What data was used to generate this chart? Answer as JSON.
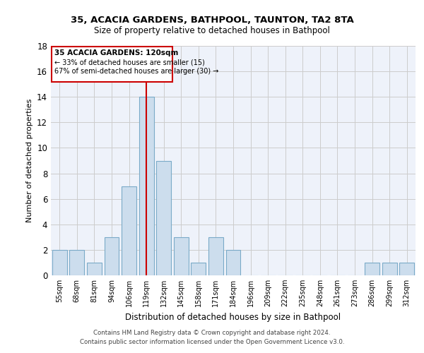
{
  "title1": "35, ACACIA GARDENS, BATHPOOL, TAUNTON, TA2 8TA",
  "title2": "Size of property relative to detached houses in Bathpool",
  "xlabel": "Distribution of detached houses by size in Bathpool",
  "ylabel": "Number of detached properties",
  "categories": [
    "55sqm",
    "68sqm",
    "81sqm",
    "94sqm",
    "106sqm",
    "119sqm",
    "132sqm",
    "145sqm",
    "158sqm",
    "171sqm",
    "184sqm",
    "196sqm",
    "209sqm",
    "222sqm",
    "235sqm",
    "248sqm",
    "261sqm",
    "273sqm",
    "286sqm",
    "299sqm",
    "312sqm"
  ],
  "values": [
    2,
    2,
    1,
    3,
    7,
    14,
    9,
    3,
    1,
    3,
    2,
    0,
    0,
    0,
    0,
    0,
    0,
    0,
    1,
    1,
    1
  ],
  "bar_color": "#ccdded",
  "bar_edge_color": "#7aaac8",
  "grid_color": "#cccccc",
  "bg_color": "#eef2fa",
  "annotation_box_color": "#ffffff",
  "annotation_border_color": "#cc0000",
  "vline_color": "#cc0000",
  "vline_index": 5,
  "property_label": "35 ACACIA GARDENS: 120sqm",
  "smaller_label": "← 33% of detached houses are smaller (15)",
  "larger_label": "67% of semi-detached houses are larger (30) →",
  "footer1": "Contains HM Land Registry data © Crown copyright and database right 2024.",
  "footer2": "Contains public sector information licensed under the Open Government Licence v3.0.",
  "ylim": [
    0,
    18
  ],
  "yticks": [
    0,
    2,
    4,
    6,
    8,
    10,
    12,
    14,
    16,
    18
  ]
}
